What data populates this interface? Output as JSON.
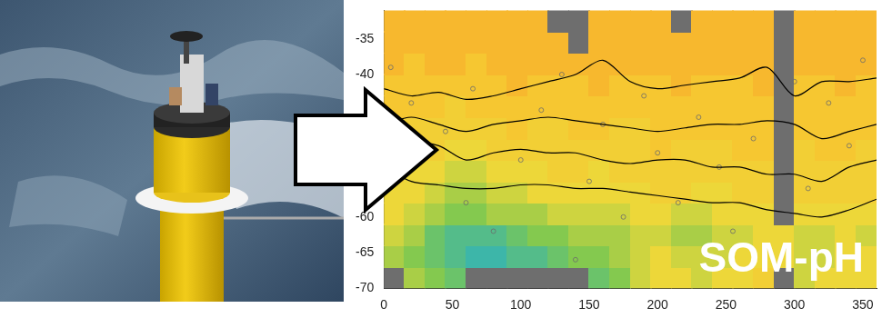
{
  "chart_data": {
    "type": "heatmap",
    "annotation": "SOM-pH",
    "xlim": [
      0,
      360
    ],
    "xticks": [
      0,
      50,
      100,
      150,
      200,
      250,
      300,
      350
    ],
    "ylim": [
      -70,
      -31
    ],
    "yticks": [
      -70,
      -65,
      -60,
      -40,
      -35
    ],
    "zlim": [
      8.0,
      8.11
    ],
    "cell_x": [
      0,
      15,
      30,
      45,
      60,
      75,
      90,
      105,
      120,
      135,
      150,
      165,
      180,
      195,
      210,
      225,
      240,
      255,
      270,
      285,
      300,
      315,
      330,
      345
    ],
    "cell_y": [
      -70,
      -67,
      -64,
      -61,
      -58,
      -55,
      -52,
      -49,
      -46,
      -43,
      -40,
      -37,
      -34
    ],
    "cells": [
      [
        null,
        8.05,
        8.04,
        8.03,
        null,
        null,
        null,
        null,
        null,
        null,
        8.03,
        8.04,
        8.06,
        8.07,
        8.07,
        8.06,
        8.07,
        8.07,
        8.08,
        null,
        8.06,
        8.07,
        8.07,
        8.07
      ],
      [
        8.05,
        8.04,
        8.03,
        8.02,
        8.01,
        8.01,
        8.02,
        8.02,
        8.03,
        8.04,
        8.04,
        8.05,
        8.06,
        8.07,
        8.06,
        8.06,
        8.06,
        8.07,
        8.07,
        8.07,
        8.06,
        8.06,
        8.07,
        8.07
      ],
      [
        8.06,
        8.05,
        8.03,
        8.02,
        8.02,
        8.02,
        8.03,
        8.04,
        8.04,
        8.05,
        8.05,
        8.05,
        8.06,
        8.06,
        8.05,
        8.05,
        8.06,
        8.06,
        8.07,
        8.07,
        8.06,
        8.06,
        8.07,
        8.06
      ],
      [
        8.07,
        8.06,
        8.05,
        8.04,
        8.04,
        8.05,
        8.05,
        8.05,
        8.06,
        8.06,
        8.06,
        8.06,
        8.07,
        8.07,
        8.06,
        8.06,
        8.07,
        8.07,
        8.07,
        null,
        8.07,
        8.07,
        8.07,
        8.07
      ],
      [
        8.07,
        8.07,
        8.06,
        8.05,
        8.05,
        8.06,
        8.06,
        8.07,
        8.07,
        8.07,
        8.07,
        8.07,
        8.07,
        8.08,
        8.08,
        8.07,
        8.07,
        8.08,
        8.08,
        null,
        8.08,
        8.08,
        8.08,
        8.08
      ],
      [
        8.08,
        8.07,
        8.07,
        8.06,
        8.06,
        8.07,
        8.07,
        8.07,
        8.08,
        8.08,
        8.07,
        8.08,
        8.08,
        8.08,
        8.08,
        8.08,
        8.08,
        8.08,
        8.08,
        null,
        8.08,
        8.08,
        8.08,
        8.08
      ],
      [
        8.08,
        8.08,
        8.08,
        8.07,
        8.07,
        8.08,
        8.08,
        8.08,
        8.08,
        8.08,
        8.08,
        8.08,
        8.08,
        8.09,
        8.08,
        8.08,
        8.08,
        8.09,
        8.09,
        null,
        8.08,
        8.09,
        8.09,
        8.08
      ],
      [
        8.08,
        8.08,
        8.08,
        8.08,
        8.08,
        8.08,
        8.09,
        8.08,
        8.08,
        8.09,
        8.09,
        8.08,
        8.08,
        8.09,
        8.09,
        8.09,
        8.09,
        8.09,
        8.09,
        null,
        8.09,
        8.09,
        8.09,
        8.09
      ],
      [
        8.09,
        8.09,
        8.09,
        8.08,
        8.09,
        8.09,
        8.09,
        8.09,
        8.09,
        8.09,
        8.09,
        8.09,
        8.09,
        8.09,
        8.09,
        8.09,
        8.09,
        8.09,
        8.09,
        null,
        8.09,
        8.09,
        8.09,
        8.09
      ],
      [
        8.09,
        8.09,
        8.09,
        8.09,
        8.09,
        8.09,
        8.1,
        8.09,
        8.09,
        8.09,
        8.1,
        8.09,
        8.09,
        8.09,
        8.1,
        8.09,
        8.09,
        8.09,
        8.1,
        null,
        8.09,
        8.09,
        8.1,
        8.09
      ],
      [
        8.1,
        8.09,
        8.1,
        8.1,
        8.09,
        8.1,
        8.1,
        8.1,
        8.1,
        8.1,
        8.1,
        8.1,
        8.1,
        8.1,
        8.1,
        8.1,
        8.1,
        8.1,
        8.1,
        null,
        8.1,
        8.1,
        8.1,
        8.1
      ],
      [
        8.1,
        8.1,
        8.1,
        8.1,
        8.1,
        8.1,
        8.1,
        8.1,
        8.1,
        null,
        8.1,
        8.1,
        8.1,
        8.1,
        8.1,
        8.1,
        8.1,
        8.1,
        8.1,
        null,
        8.1,
        8.1,
        8.1,
        8.1
      ],
      [
        8.1,
        8.1,
        8.1,
        8.1,
        8.1,
        8.1,
        8.1,
        8.1,
        null,
        null,
        8.1,
        8.1,
        8.1,
        8.1,
        null,
        8.1,
        8.1,
        8.1,
        8.1,
        null,
        8.1,
        8.1,
        8.1,
        8.1
      ]
    ],
    "contours": [
      {
        "color": "#000000",
        "x": [
          0,
          20,
          40,
          60,
          80,
          100,
          120,
          140,
          160,
          180,
          200,
          220,
          240,
          260,
          280,
          300,
          320,
          340,
          360
        ],
        "y": [
          -42,
          -43,
          -42.5,
          -43.5,
          -43,
          -42,
          -41,
          -40,
          -38,
          -41,
          -42,
          -41.5,
          -41,
          -40.5,
          -39,
          -43,
          -41,
          -41,
          -40.5
        ]
      },
      {
        "color": "#000000",
        "x": [
          0,
          20,
          40,
          60,
          80,
          100,
          120,
          140,
          160,
          180,
          200,
          220,
          240,
          260,
          280,
          300,
          320,
          340,
          360
        ],
        "y": [
          -47,
          -46,
          -47,
          -48,
          -47,
          -46.5,
          -46,
          -46.5,
          -47,
          -47.5,
          -48,
          -47.5,
          -47,
          -47,
          -46.5,
          -47,
          -49,
          -48,
          -47
        ]
      },
      {
        "color": "#000000",
        "x": [
          0,
          20,
          40,
          60,
          80,
          100,
          120,
          140,
          160,
          180,
          200,
          220,
          240,
          260,
          280,
          300,
          320,
          340,
          360
        ],
        "y": [
          -50,
          -49.5,
          -50,
          -52,
          -51,
          -50.5,
          -51,
          -51,
          -52,
          -52.5,
          -52,
          -52,
          -53,
          -53,
          -54,
          -54,
          -55,
          -53,
          -52
        ]
      },
      {
        "color": "#000000",
        "x": [
          0,
          20,
          40,
          60,
          80,
          100,
          120,
          140,
          160,
          180,
          200,
          220,
          240,
          260,
          280,
          300,
          320,
          340,
          360
        ],
        "y": [
          -53,
          -55,
          -55.5,
          -56,
          -56,
          -55.5,
          -55.5,
          -56,
          -56,
          -56.5,
          -57,
          -57.5,
          -58,
          -58,
          -59,
          -59.5,
          -60,
          -59,
          -57.5
        ]
      }
    ],
    "observations": {
      "color": "#6b6b6b",
      "marker": "circle",
      "x": [
        5,
        20,
        45,
        60,
        80,
        100,
        115,
        130,
        150,
        160,
        175,
        190,
        200,
        215,
        230,
        245,
        255,
        270,
        300,
        310,
        325,
        340,
        350,
        65,
        140
      ],
      "y": [
        -39,
        -44,
        -48,
        -58,
        -62,
        -52,
        -45,
        -40,
        -55,
        -47,
        -60,
        -43,
        -51,
        -58,
        -46,
        -53,
        -62,
        -49,
        -41,
        -56,
        -44,
        -50,
        -38,
        -42,
        -66
      ]
    }
  }
}
